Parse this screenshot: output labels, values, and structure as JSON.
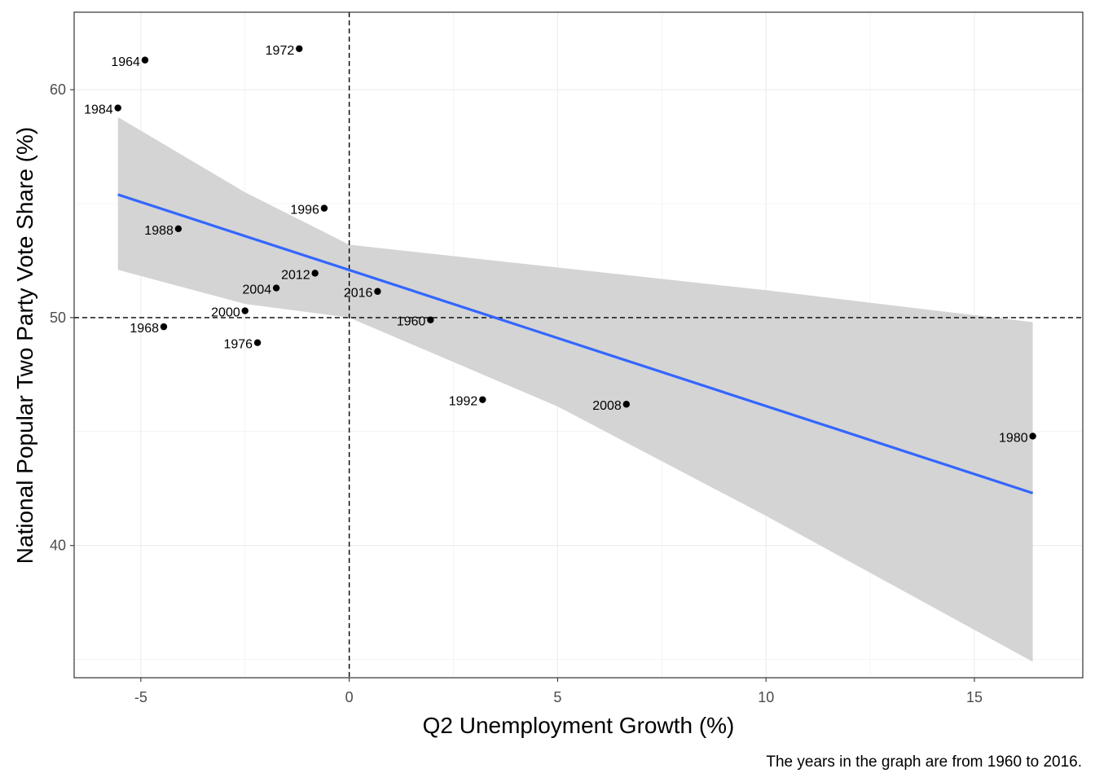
{
  "chart_data": {
    "type": "scatter",
    "title": "",
    "xlabel": "Q2 Unemployment Growth (%)",
    "ylabel": "National Popular Two Party Vote Share (%)",
    "caption": "The years in the graph are from 1960 to 2016.",
    "xlim": [
      -6.6,
      17.6
    ],
    "ylim": [
      34.2,
      63.4
    ],
    "x_ticks": [
      -5,
      0,
      5,
      10,
      15
    ],
    "x_tick_labels": [
      "-5",
      "0",
      "5",
      "10",
      "15"
    ],
    "y_ticks": [
      40,
      50,
      60
    ],
    "y_tick_labels": [
      "40",
      "50",
      "60"
    ],
    "grid": true,
    "reference_lines": {
      "x": 0,
      "y": 50,
      "style": "dashed"
    },
    "points": [
      {
        "label": "1960",
        "x": 1.95,
        "y": 49.9
      },
      {
        "label": "1964",
        "x": -4.9,
        "y": 61.3
      },
      {
        "label": "1968",
        "x": -4.45,
        "y": 49.6
      },
      {
        "label": "1972",
        "x": -1.2,
        "y": 61.8
      },
      {
        "label": "1976",
        "x": -2.2,
        "y": 48.9
      },
      {
        "label": "1980",
        "x": 16.4,
        "y": 44.8
      },
      {
        "label": "1984",
        "x": -5.55,
        "y": 59.2
      },
      {
        "label": "1988",
        "x": -4.1,
        "y": 53.9
      },
      {
        "label": "1992",
        "x": 3.2,
        "y": 46.4
      },
      {
        "label": "1996",
        "x": -0.6,
        "y": 54.8
      },
      {
        "label": "2000",
        "x": -2.5,
        "y": 50.3
      },
      {
        "label": "2004",
        "x": -1.75,
        "y": 51.3
      },
      {
        "label": "2008",
        "x": 6.65,
        "y": 46.2
      },
      {
        "label": "2012",
        "x": -0.82,
        "y": 51.95
      },
      {
        "label": "2016",
        "x": 0.68,
        "y": 51.15
      }
    ],
    "regression": {
      "fit": [
        [
          -5.55,
          55.4
        ],
        [
          16.4,
          42.3
        ]
      ],
      "ci_upper": [
        [
          -5.55,
          58.8
        ],
        [
          -2.5,
          55.5
        ],
        [
          0,
          53.2
        ],
        [
          5,
          52.2
        ],
        [
          10,
          51.2
        ],
        [
          16.4,
          49.8
        ]
      ],
      "ci_lower": [
        [
          -5.55,
          52.1
        ],
        [
          -2.5,
          50.6
        ],
        [
          0,
          50.0
        ],
        [
          5,
          46.1
        ],
        [
          10,
          41.3
        ],
        [
          16.4,
          34.9
        ]
      ]
    },
    "colors": {
      "point": "#000000",
      "fit_line": "#3366ff",
      "ci_band": "#d4d4d4",
      "grid": "#ebebeb",
      "reference_line": "#000000"
    }
  }
}
